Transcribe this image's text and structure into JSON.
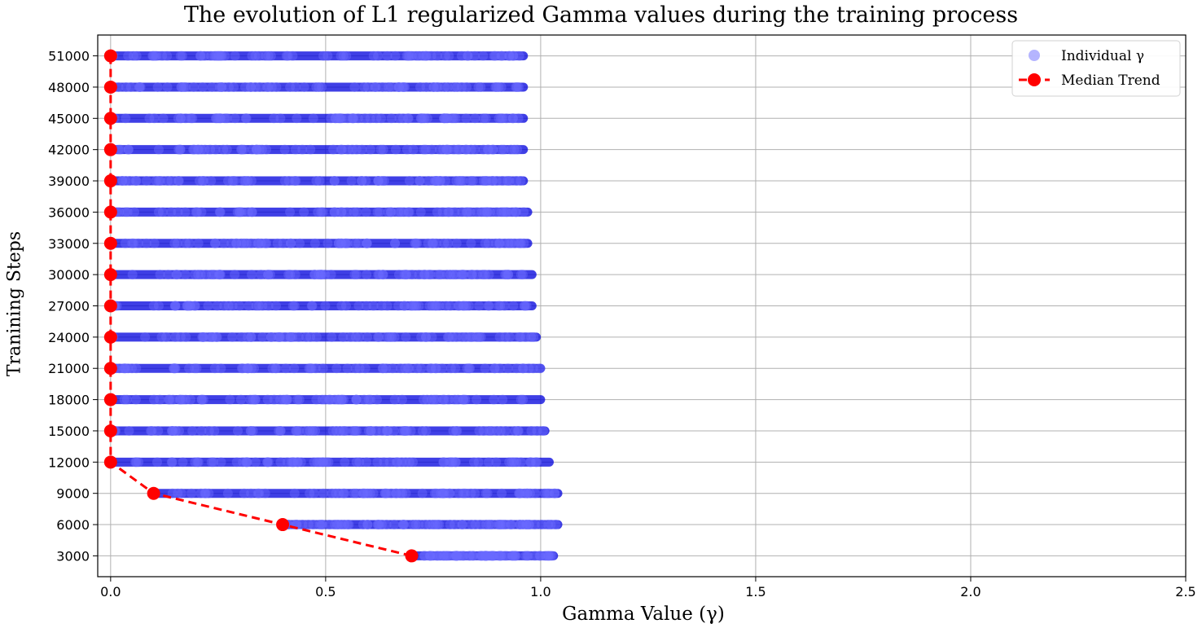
{
  "chart_data": {
    "type": "scatter",
    "title": "The evolution of L1 regularized Gamma values during the training process",
    "xlabel": "Gamma Value (γ)",
    "ylabel": "Tranining Steps",
    "xlim": [
      -0.03,
      2.5
    ],
    "ylim": [
      1000,
      53000
    ],
    "xticks": [
      "0.0",
      "0.5",
      "1.0",
      "1.5",
      "2.0",
      "2.5"
    ],
    "xtick_values": [
      0.0,
      0.5,
      1.0,
      1.5,
      2.0,
      2.5
    ],
    "yticks": [
      "3000",
      "6000",
      "9000",
      "12000",
      "15000",
      "18000",
      "21000",
      "24000",
      "27000",
      "30000",
      "33000",
      "36000",
      "39000",
      "42000",
      "45000",
      "48000",
      "51000"
    ],
    "ytick_values": [
      3000,
      6000,
      9000,
      12000,
      15000,
      18000,
      21000,
      24000,
      27000,
      30000,
      33000,
      36000,
      39000,
      42000,
      45000,
      48000,
      51000
    ],
    "grid": true,
    "legend_position": "top-right",
    "series": [
      {
        "name": "Individual γ",
        "kind": "scatter",
        "color": "#0000dd",
        "rows": [
          {
            "step": 3000,
            "min": 0.7,
            "max": 1.03
          },
          {
            "step": 6000,
            "min": 0.4,
            "max": 1.04
          },
          {
            "step": 9000,
            "min": 0.1,
            "max": 1.04
          },
          {
            "step": 12000,
            "min": 0.0,
            "max": 1.02
          },
          {
            "step": 15000,
            "min": 0.0,
            "max": 1.01
          },
          {
            "step": 18000,
            "min": 0.0,
            "max": 1.0
          },
          {
            "step": 21000,
            "min": 0.0,
            "max": 1.0
          },
          {
            "step": 24000,
            "min": 0.0,
            "max": 0.99
          },
          {
            "step": 27000,
            "min": 0.0,
            "max": 0.98
          },
          {
            "step": 30000,
            "min": 0.0,
            "max": 0.98
          },
          {
            "step": 33000,
            "min": 0.0,
            "max": 0.97
          },
          {
            "step": 36000,
            "min": 0.0,
            "max": 0.97
          },
          {
            "step": 39000,
            "min": 0.0,
            "max": 0.96
          },
          {
            "step": 42000,
            "min": 0.0,
            "max": 0.96
          },
          {
            "step": 45000,
            "min": 0.0,
            "max": 0.96
          },
          {
            "step": 48000,
            "min": 0.0,
            "max": 0.96
          },
          {
            "step": 51000,
            "min": 0.0,
            "max": 0.96
          }
        ]
      },
      {
        "name": "Median Trend",
        "kind": "line",
        "color": "#ff0000",
        "dashed": true,
        "points": [
          {
            "x": 0.7,
            "y": 3000
          },
          {
            "x": 0.4,
            "y": 6000
          },
          {
            "x": 0.1,
            "y": 9000
          },
          {
            "x": 0.0,
            "y": 12000
          },
          {
            "x": 0.0,
            "y": 15000
          },
          {
            "x": 0.0,
            "y": 18000
          },
          {
            "x": 0.0,
            "y": 21000
          },
          {
            "x": 0.0,
            "y": 24000
          },
          {
            "x": 0.0,
            "y": 27000
          },
          {
            "x": 0.0,
            "y": 30000
          },
          {
            "x": 0.0,
            "y": 33000
          },
          {
            "x": 0.0,
            "y": 36000
          },
          {
            "x": 0.0,
            "y": 39000
          },
          {
            "x": 0.0,
            "y": 42000
          },
          {
            "x": 0.0,
            "y": 45000
          },
          {
            "x": 0.0,
            "y": 48000
          },
          {
            "x": 0.0,
            "y": 51000
          }
        ]
      }
    ]
  }
}
